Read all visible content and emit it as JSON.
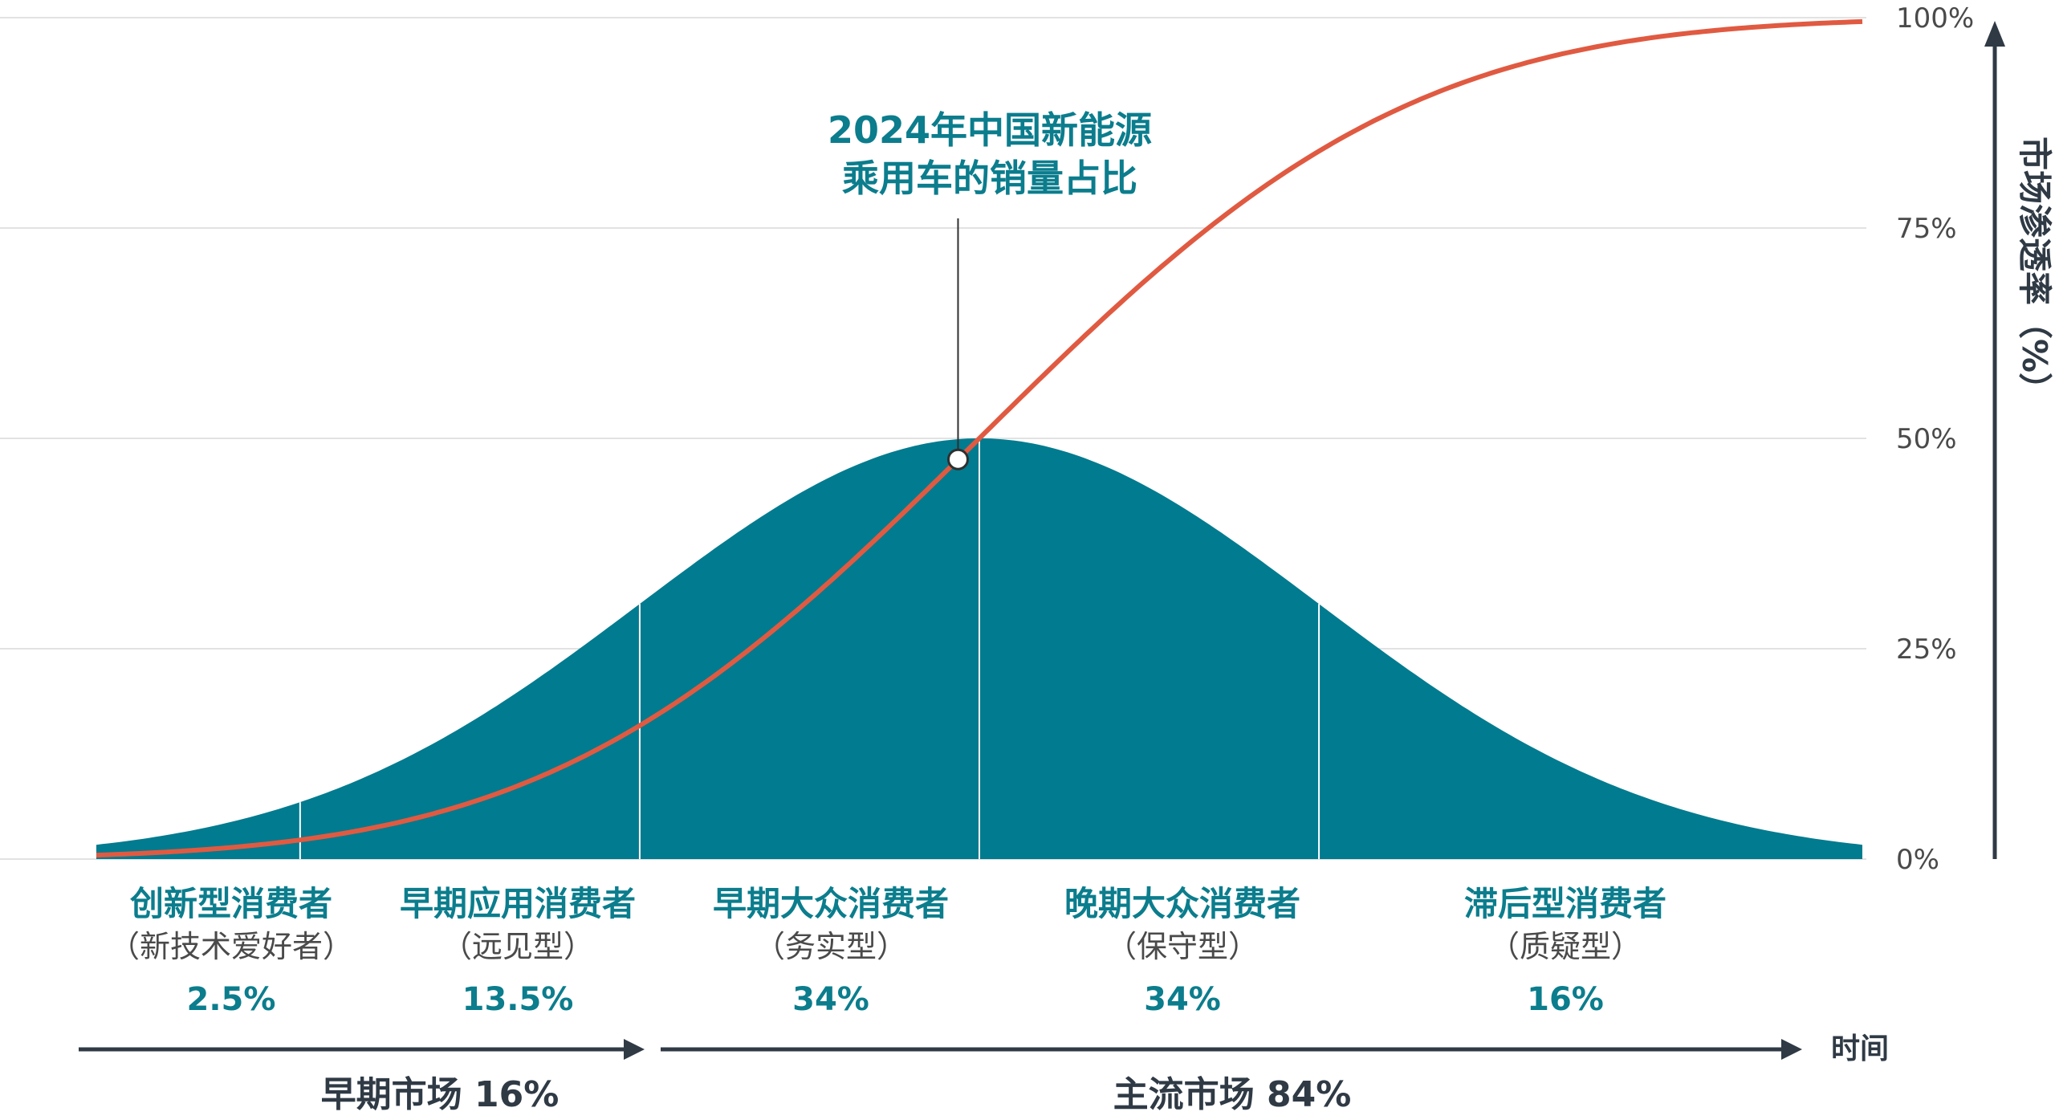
{
  "chart_data": {
    "type": "area",
    "ylim": [
      0,
      100
    ],
    "y_ticks": [
      "0%",
      "25%",
      "50%",
      "75%",
      "100%"
    ],
    "y_tick_values": [
      0,
      25,
      50,
      75,
      100
    ],
    "grid": true,
    "ylabel": "市场渗透率（%）",
    "xlabel": "时间",
    "annotation": {
      "lines": [
        "2024年中国新能源",
        "乘用车的销量占比"
      ],
      "value": 47.5
    },
    "adoption_curve": {
      "name": "",
      "peak": 50,
      "mean_sd": 0,
      "sd_range": [
        -2.6,
        2.6
      ]
    },
    "cumulative_curve": {
      "name": "",
      "range": [
        0,
        100
      ]
    },
    "segments": [
      {
        "title": "创新型消费者",
        "subtitle": "（新技术爱好者）",
        "share": "2.5%",
        "boundary_sd": -2
      },
      {
        "title": "早期应用消费者",
        "subtitle": "（远见型）",
        "share": "13.5%",
        "boundary_sd": -1
      },
      {
        "title": "早期大众消费者",
        "subtitle": "（务实型）",
        "share": "34%",
        "boundary_sd": 0
      },
      {
        "title": "晚期大众消费者",
        "subtitle": "（保守型）",
        "share": "34%",
        "boundary_sd": 1
      },
      {
        "title": "滞后型消费者",
        "subtitle": "（质疑型）",
        "share": "16%",
        "boundary_sd": null
      }
    ],
    "markets": [
      {
        "label": "早期市场 16%"
      },
      {
        "label": "主流市场 84%"
      }
    ],
    "colors": {
      "bell": "#007b8f",
      "curve": "#e05a41",
      "grid": "#d9d9d9",
      "axis": "#2f3a45",
      "accent_text": "#0b7d8d"
    }
  }
}
